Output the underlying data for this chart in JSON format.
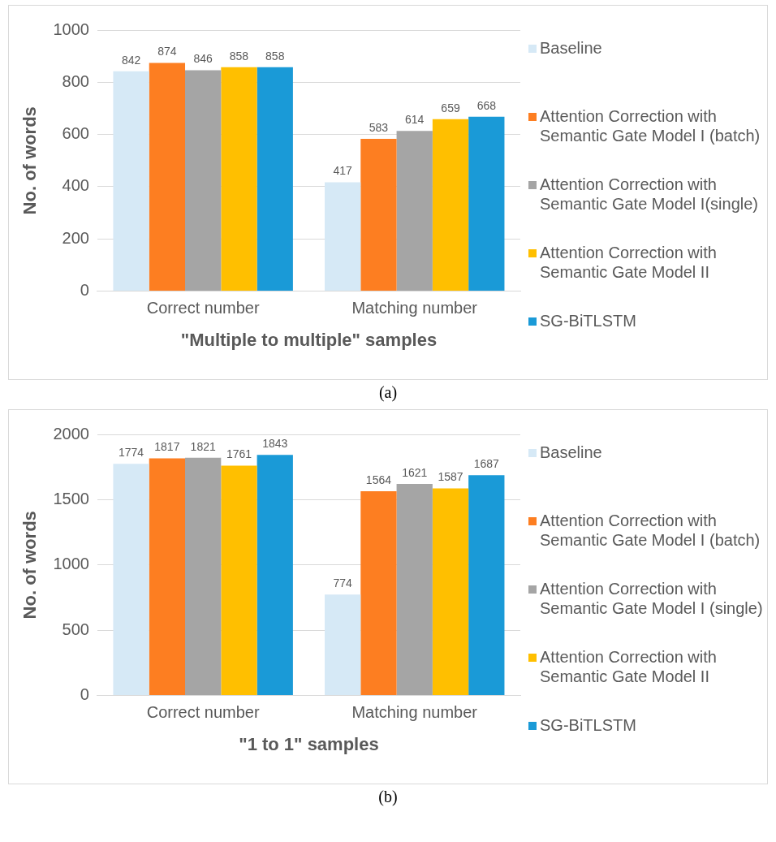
{
  "chart_data": [
    {
      "type": "bar",
      "xlabel": "\"Multiple to multiple\" samples",
      "ylabel": "No. of words",
      "categories": [
        "Correct number",
        "Matching number"
      ],
      "series": [
        {
          "name": "Baseline",
          "color": "#d6e9f6",
          "values": [
            842,
            417
          ]
        },
        {
          "name": "Attention Correction with Semantic Gate Model I (batch)",
          "color": "#fd7e21",
          "values": [
            874,
            583
          ]
        },
        {
          "name": "Attention Correction with Semantic Gate Model I(single)",
          "color": "#a5a5a5",
          "values": [
            846,
            614
          ]
        },
        {
          "name": "Attention Correction with Semantic Gate Model II",
          "color": "#ffbf00",
          "values": [
            858,
            659
          ]
        },
        {
          "name": "SG-BiTLSTM",
          "color": "#1a9ad7",
          "values": [
            858,
            668
          ]
        }
      ],
      "ylim": [
        0,
        1000
      ],
      "yticks": [
        0,
        200,
        400,
        600,
        800,
        1000
      ],
      "grid": "y",
      "legend": "right",
      "data_labels": true,
      "annotations": [
        "(a)"
      ]
    },
    {
      "type": "bar",
      "xlabel": "\"1 to 1\" samples",
      "ylabel": "No. of words",
      "categories": [
        "Correct number",
        "Matching number"
      ],
      "series": [
        {
          "name": "Baseline",
          "color": "#d6e9f6",
          "values": [
            1774,
            774
          ]
        },
        {
          "name": "Attention Correction with Semantic Gate Model I (batch)",
          "color": "#fd7e21",
          "values": [
            1817,
            1564
          ]
        },
        {
          "name": "Attention Correction with Semantic Gate Model I (single)",
          "color": "#a5a5a5",
          "values": [
            1821,
            1621
          ]
        },
        {
          "name": "Attention Correction with Semantic Gate Model II",
          "color": "#ffbf00",
          "values": [
            1761,
            1587
          ]
        },
        {
          "name": "SG-BiTLSTM",
          "color": "#1a9ad7",
          "values": [
            1843,
            1687
          ]
        }
      ],
      "ylim": [
        0,
        2000
      ],
      "yticks": [
        0,
        500,
        1000,
        1500,
        2000
      ],
      "grid": "y",
      "legend": "right",
      "data_labels": true,
      "annotations": [
        "(b)"
      ]
    }
  ]
}
